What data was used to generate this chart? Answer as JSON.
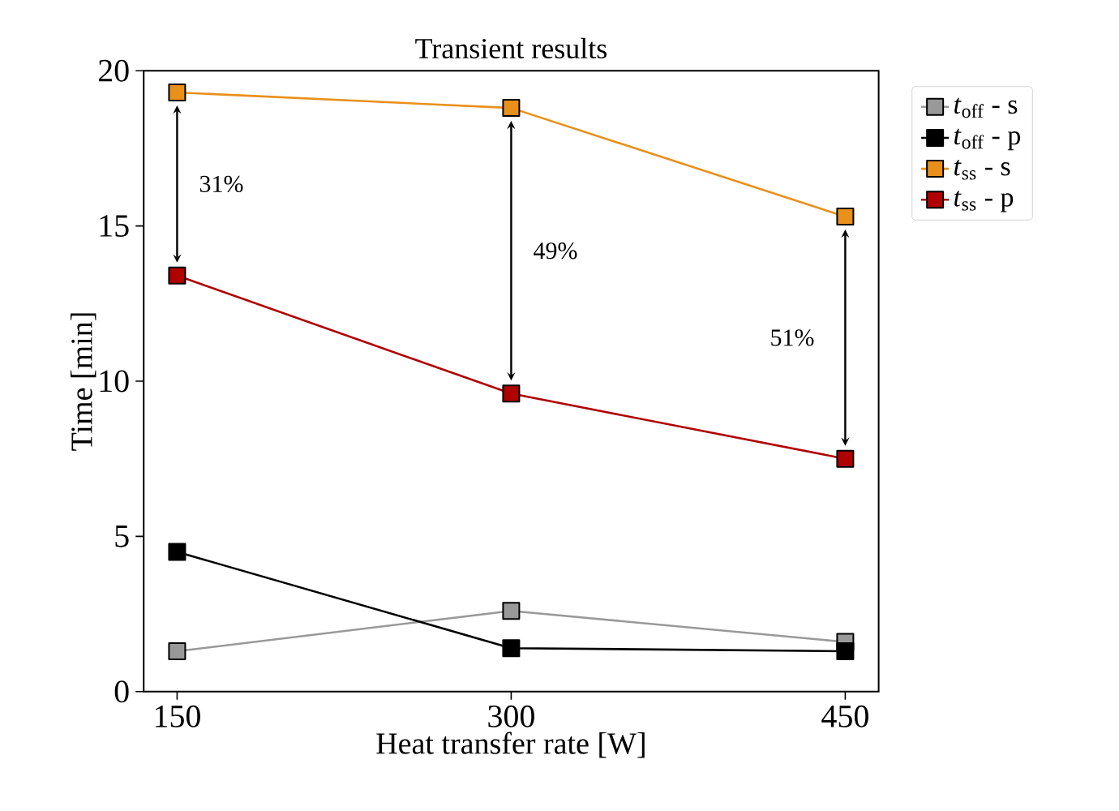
{
  "chart_data": {
    "type": "line",
    "title": "Transient results",
    "xlabel": "Heat transfer rate [W]",
    "ylabel": "Time [min]",
    "x": [
      150,
      300,
      450
    ],
    "xlim": [
      135,
      465
    ],
    "ylim": [
      0,
      20
    ],
    "xticks": [
      150,
      300,
      450
    ],
    "yticks": [
      0,
      5,
      10,
      15,
      20
    ],
    "marker": "square",
    "line_style": "solid",
    "grid": false,
    "legend": "top right",
    "series": [
      {
        "name": "*t*$_{off}$ - s",
        "color": "#999999",
        "values": [
          1.3,
          2.6,
          1.6
        ]
      },
      {
        "name": "*t*$_{off}$ - p",
        "color": "#000000",
        "values": [
          4.5,
          1.4,
          1.3
        ]
      },
      {
        "name": "*t*$_{ss}$ - s",
        "color": "#e8901a",
        "values": [
          19.3,
          18.8,
          15.3
        ]
      },
      {
        "name": "*t*$_{ss}$ - p",
        "color": "#b00000",
        "values": [
          13.4,
          9.6,
          7.5
        ]
      }
    ],
    "annotations": [
      "31%",
      "49%",
      "51%"
    ]
  }
}
